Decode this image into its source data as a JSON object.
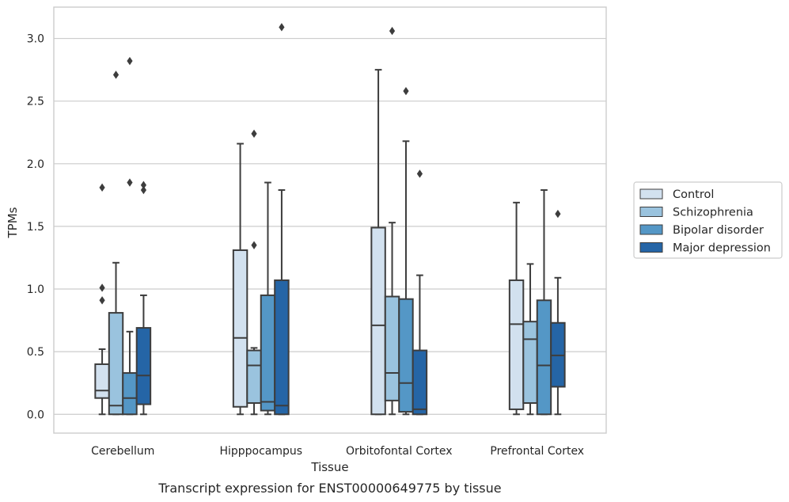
{
  "chart_data": {
    "type": "box",
    "title": "",
    "caption": "Transcript expression for ENST00000649775 by tissue",
    "xlabel": "Tissue",
    "ylabel": "TPMs",
    "ylim": [
      -0.15,
      3.25
    ],
    "yticks": [
      "0.0",
      "0.5",
      "1.0",
      "1.5",
      "2.0",
      "2.5",
      "3.0"
    ],
    "ytick_values": [
      0,
      0.5,
      1.0,
      1.5,
      2.0,
      2.5,
      3.0
    ],
    "grid": "horizontal",
    "legend_position": "right",
    "categories": [
      "Cerebellum",
      "Hipppocampus",
      "Orbitofontal Cortex",
      "Prefrontal Cortex"
    ],
    "series": [
      {
        "name": "Control",
        "color": "#d2e1ef",
        "boxes": [
          {
            "whislo": 0.0,
            "q1": 0.13,
            "med": 0.19,
            "q3": 0.4,
            "whishi": 0.52,
            "fliers": [
              0.91,
              1.01,
              1.81
            ]
          },
          {
            "whislo": 0.0,
            "q1": 0.06,
            "med": 0.61,
            "q3": 1.31,
            "whishi": 2.16,
            "fliers": []
          },
          {
            "whislo": 0.0,
            "q1": 0.0,
            "med": 0.71,
            "q3": 1.49,
            "whishi": 2.75,
            "fliers": []
          },
          {
            "whislo": 0.0,
            "q1": 0.04,
            "med": 0.72,
            "q3": 1.07,
            "whishi": 1.69,
            "fliers": []
          }
        ]
      },
      {
        "name": "Schizophrenia",
        "color": "#9ac3de",
        "boxes": [
          {
            "whislo": 0.0,
            "q1": 0.0,
            "med": 0.07,
            "q3": 0.81,
            "whishi": 1.21,
            "fliers": [
              2.71
            ]
          },
          {
            "whislo": 0.0,
            "q1": 0.09,
            "med": 0.39,
            "q3": 0.51,
            "whishi": 0.53,
            "fliers": [
              1.35,
              2.24
            ]
          },
          {
            "whislo": 0.0,
            "q1": 0.11,
            "med": 0.33,
            "q3": 0.94,
            "whishi": 1.53,
            "fliers": [
              3.06
            ]
          },
          {
            "whislo": 0.0,
            "q1": 0.09,
            "med": 0.6,
            "q3": 0.74,
            "whishi": 1.2,
            "fliers": []
          }
        ]
      },
      {
        "name": "Bipolar disorder",
        "color": "#5497c6",
        "boxes": [
          {
            "whislo": 0.0,
            "q1": 0.0,
            "med": 0.13,
            "q3": 0.33,
            "whishi": 0.66,
            "fliers": [
              1.85,
              2.82
            ]
          },
          {
            "whislo": 0.0,
            "q1": 0.03,
            "med": 0.1,
            "q3": 0.95,
            "whishi": 1.85,
            "fliers": []
          },
          {
            "whislo": 0.0,
            "q1": 0.02,
            "med": 0.25,
            "q3": 0.92,
            "whishi": 2.18,
            "fliers": [
              2.58
            ]
          },
          {
            "whislo": 0.0,
            "q1": 0.0,
            "med": 0.39,
            "q3": 0.91,
            "whishi": 1.79,
            "fliers": []
          }
        ]
      },
      {
        "name": "Major depression",
        "color": "#2565a6",
        "boxes": [
          {
            "whislo": 0.0,
            "q1": 0.08,
            "med": 0.31,
            "q3": 0.69,
            "whishi": 0.95,
            "fliers": [
              1.79,
              1.83
            ]
          },
          {
            "whislo": 0.0,
            "q1": 0.0,
            "med": 0.07,
            "q3": 1.07,
            "whishi": 1.79,
            "fliers": [
              3.09
            ]
          },
          {
            "whislo": 0.0,
            "q1": 0.0,
            "med": 0.04,
            "q3": 0.51,
            "whishi": 1.11,
            "fliers": [
              1.92
            ]
          },
          {
            "whislo": 0.0,
            "q1": 0.22,
            "med": 0.47,
            "q3": 0.73,
            "whishi": 1.09,
            "fliers": [
              1.6
            ]
          }
        ]
      }
    ]
  }
}
